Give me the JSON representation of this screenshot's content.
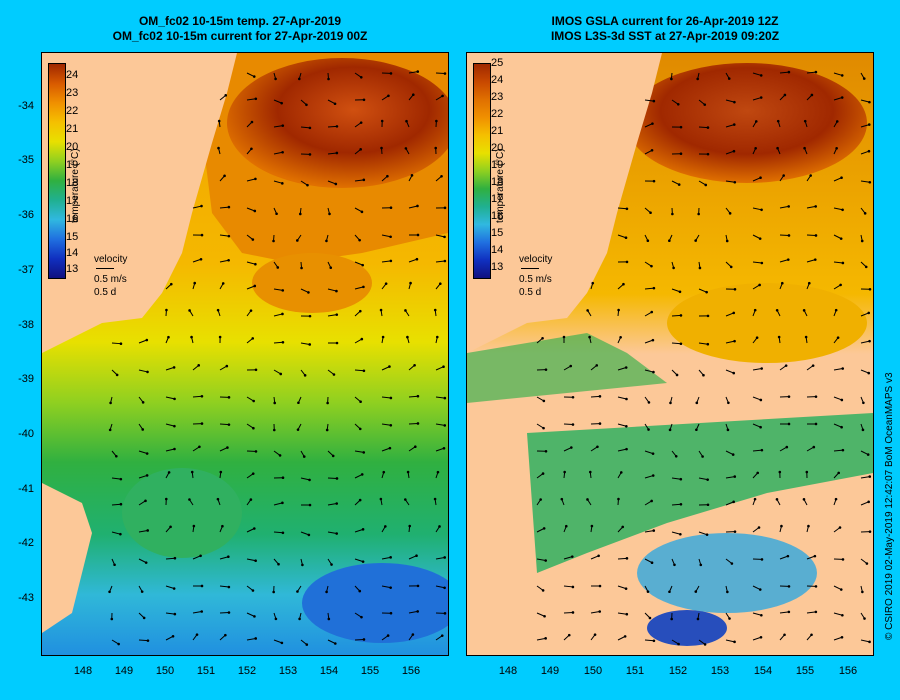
{
  "left": {
    "title1": "OM_fc02 10-15m temp. 27-Apr-2019",
    "title2": "OM_fc02 10-15m current for 27-Apr-2019 00Z",
    "colorbar": {
      "label": "temperature (°C)",
      "ticks": [
        "24",
        "23",
        "22",
        "21",
        "20",
        "19",
        "18",
        "17",
        "16",
        "15",
        "14",
        "13"
      ]
    },
    "velocity": {
      "label": "velocity",
      "speed": "0.5 m/s",
      "duration": "0.5 d"
    }
  },
  "right": {
    "title1": "IMOS GSLA current for 26-Apr-2019 12Z",
    "title2": "IMOS L3S-3d SST at 27-Apr-2019 09:20Z",
    "colorbar": {
      "label": "temperature (°C)",
      "ticks": [
        "25",
        "24",
        "23",
        "22",
        "21",
        "20",
        "19",
        "18",
        "17",
        "16",
        "15",
        "14",
        "13"
      ]
    },
    "velocity": {
      "label": "velocity",
      "speed": "0.5 m/s",
      "duration": "0.5 d"
    }
  },
  "axes": {
    "lat_ticks": [
      "-34",
      "-35",
      "-36",
      "-37",
      "-38",
      "-39",
      "-40",
      "-41",
      "-42",
      "-43"
    ],
    "lon_ticks": [
      "148",
      "149",
      "150",
      "151",
      "152",
      "153",
      "154",
      "155",
      "156"
    ]
  },
  "credit": "© CSIRO 2019   02-May-2019 12:42:07 BoM OceanMAPS v3",
  "colors": {
    "background": "#00ccff",
    "land": "#fcc898",
    "warm": "#b03000",
    "mid": "#f0b000",
    "cool": "#22b040",
    "cold": "#30b0e8"
  }
}
